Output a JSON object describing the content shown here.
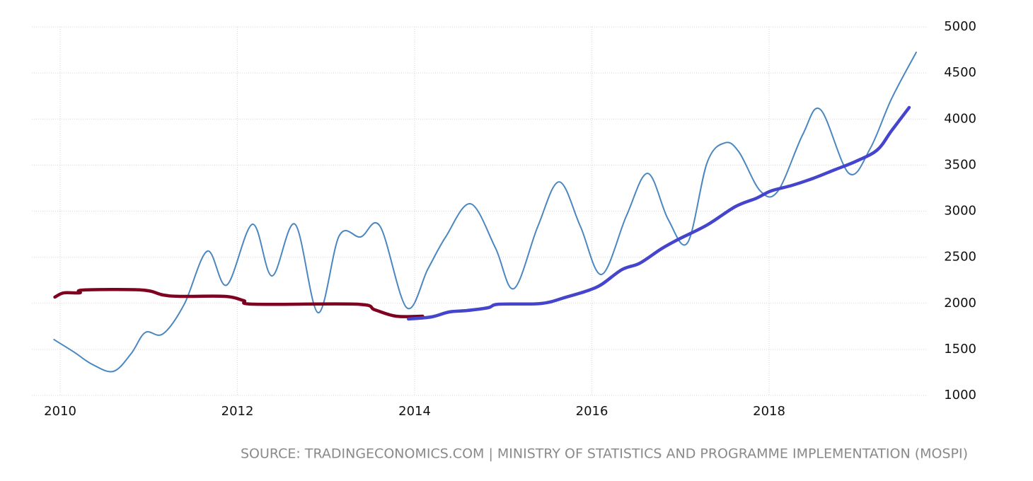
{
  "chart_data": {
    "type": "line",
    "source": "SOURCE: TRADINGECONOMICS.COM | MINISTRY OF STATISTICS AND PROGRAMME IMPLEMENTATION (MOSPI)",
    "xlim": [
      2009.68,
      2019.78
    ],
    "xticks": [
      2010,
      2012,
      2014,
      2016,
      2018
    ],
    "ylim": [
      1000,
      5000
    ],
    "yticks": [
      1000,
      1500,
      2000,
      2500,
      3000,
      3500,
      4000,
      4500,
      5000
    ],
    "grid": true,
    "series": [
      {
        "color": "#4a87c0",
        "width": 2,
        "x": [
          2009.93,
          2010.16,
          2010.36,
          2010.6,
          2010.8,
          2010.96,
          2011.16,
          2011.4,
          2011.66,
          2011.88,
          2012.17,
          2012.39,
          2012.65,
          2012.91,
          2013.15,
          2013.39,
          2013.61,
          2013.91,
          2014.15,
          2014.35,
          2014.63,
          2014.91,
          2015.12,
          2015.39,
          2015.63,
          2015.87,
          2016.11,
          2016.39,
          2016.63,
          2016.86,
          2017.08,
          2017.3,
          2017.5,
          2017.66,
          2017.9,
          2018.1,
          2018.38,
          2018.58,
          2018.9,
          2019.14,
          2019.38,
          2019.66
        ],
        "values": [
          1606,
          1468,
          1338,
          1261,
          1453,
          1683,
          1668,
          1990,
          2566,
          2198,
          2858,
          2297,
          2858,
          1898,
          2735,
          2720,
          2835,
          1952,
          2374,
          2720,
          3080,
          2604,
          2159,
          2835,
          3318,
          2835,
          2313,
          2950,
          3410,
          2912,
          2658,
          3526,
          3741,
          3641,
          3219,
          3219,
          3833,
          4102,
          3410,
          3679,
          4217,
          4724
        ]
      },
      {
        "color": "#800020",
        "width": 4.5,
        "x": [
          2009.94,
          2010.04,
          2010.22,
          2010.26,
          2010.92,
          2011.16,
          2011.36,
          2011.86,
          2012.07,
          2012.19,
          2013.35,
          2013.55,
          2013.79,
          2014.09
        ],
        "values": [
          2067,
          2113,
          2113,
          2144,
          2144,
          2090,
          2075,
          2075,
          2029,
          1990,
          1990,
          1929,
          1860,
          1860
        ]
      },
      {
        "color": "#4444cc",
        "width": 4.5,
        "x": [
          2013.93,
          2014.19,
          2014.39,
          2014.59,
          2014.83,
          2014.95,
          2015.43,
          2015.71,
          2015.95,
          2016.11,
          2016.34,
          2016.54,
          2016.78,
          2016.98,
          2017.3,
          2017.62,
          2017.86,
          2018.02,
          2018.26,
          2018.5,
          2018.74,
          2018.98,
          2019.22,
          2019.38,
          2019.58
        ],
        "values": [
          1829,
          1852,
          1906,
          1921,
          1952,
          1990,
          1998,
          2067,
          2136,
          2205,
          2366,
          2435,
          2589,
          2696,
          2850,
          3050,
          3142,
          3219,
          3280,
          3357,
          3449,
          3541,
          3664,
          3871,
          4125
        ]
      }
    ]
  }
}
